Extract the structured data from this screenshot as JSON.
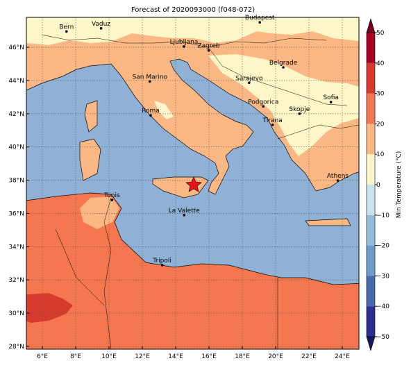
{
  "map": {
    "title": "Forecast of 2020093000 (f048-072)",
    "lon_range": [
      5.04,
      25
    ],
    "lat_range": [
      27.83,
      47.8
    ],
    "lon_ticks": [
      {
        "value": 6,
        "label": "6°E"
      },
      {
        "value": 8,
        "label": "8°E"
      },
      {
        "value": 10,
        "label": "10°E"
      },
      {
        "value": 12,
        "label": "12°E"
      },
      {
        "value": 14,
        "label": "14°E"
      },
      {
        "value": 16,
        "label": "16°E"
      },
      {
        "value": 18,
        "label": "18°E"
      },
      {
        "value": 20,
        "label": "20°E"
      },
      {
        "value": 22,
        "label": "22°E"
      },
      {
        "value": 24,
        "label": "24°E"
      }
    ],
    "lat_ticks": [
      {
        "value": 28,
        "label": "28°N"
      },
      {
        "value": 30,
        "label": "30°N"
      },
      {
        "value": 32,
        "label": "32°N"
      },
      {
        "value": 34,
        "label": "34°N"
      },
      {
        "value": 36,
        "label": "36°N"
      },
      {
        "value": 38,
        "label": "38°N"
      },
      {
        "value": 40,
        "label": "40°N"
      },
      {
        "value": 42,
        "label": "42°N"
      },
      {
        "value": 44,
        "label": "44°N"
      },
      {
        "value": 46,
        "label": "46°N"
      }
    ],
    "grid": true,
    "cities": [
      {
        "name": "Bern",
        "lon": 7.45,
        "lat": 46.95
      },
      {
        "name": "Vaduz",
        "lon": 9.52,
        "lat": 47.14
      },
      {
        "name": "Budapest",
        "lon": 19.05,
        "lat": 47.5
      },
      {
        "name": "Ljubljana",
        "lon": 14.5,
        "lat": 46.05
      },
      {
        "name": "Zagreb",
        "lon": 15.98,
        "lat": 45.81
      },
      {
        "name": "Belgrade",
        "lon": 20.46,
        "lat": 44.79
      },
      {
        "name": "San Marino",
        "lon": 12.45,
        "lat": 43.94
      },
      {
        "name": "Sarajevo",
        "lon": 18.41,
        "lat": 43.86
      },
      {
        "name": "Sofia",
        "lon": 23.32,
        "lat": 42.7
      },
      {
        "name": "Roma",
        "lon": 12.5,
        "lat": 41.9
      },
      {
        "name": "Podgorica",
        "lon": 19.26,
        "lat": 42.44
      },
      {
        "name": "Skopje",
        "lon": 21.43,
        "lat": 42.0
      },
      {
        "name": "Tirana",
        "lon": 19.82,
        "lat": 41.33
      },
      {
        "name": "Athens",
        "lon": 23.73,
        "lat": 37.98
      },
      {
        "name": "Tunis",
        "lon": 10.18,
        "lat": 36.81
      },
      {
        "name": "La Valette",
        "lon": 14.51,
        "lat": 35.9
      },
      {
        "name": "Tripoli",
        "lon": 13.19,
        "lat": 32.89
      }
    ],
    "colorbar": {
      "label": "Min Temperature (°C)",
      "ticks": [
        {
          "value": -50,
          "label": "−50"
        },
        {
          "value": -40,
          "label": "−40"
        },
        {
          "value": -30,
          "label": "−30"
        },
        {
          "value": -20,
          "label": "−20"
        },
        {
          "value": -10,
          "label": "−10"
        },
        0,
        10,
        20,
        30,
        40,
        50
      ],
      "colors": [
        "#2b2f8f",
        "#4669ad",
        "#6e9bc8",
        "#93bbdb",
        "#c9e4ef",
        "#fdf6c8",
        "#fcb884",
        "#f4774f",
        "#d63a2e",
        "#a50026"
      ],
      "under_color": "#14165e",
      "over_color": "#7a0020"
    }
  }
}
